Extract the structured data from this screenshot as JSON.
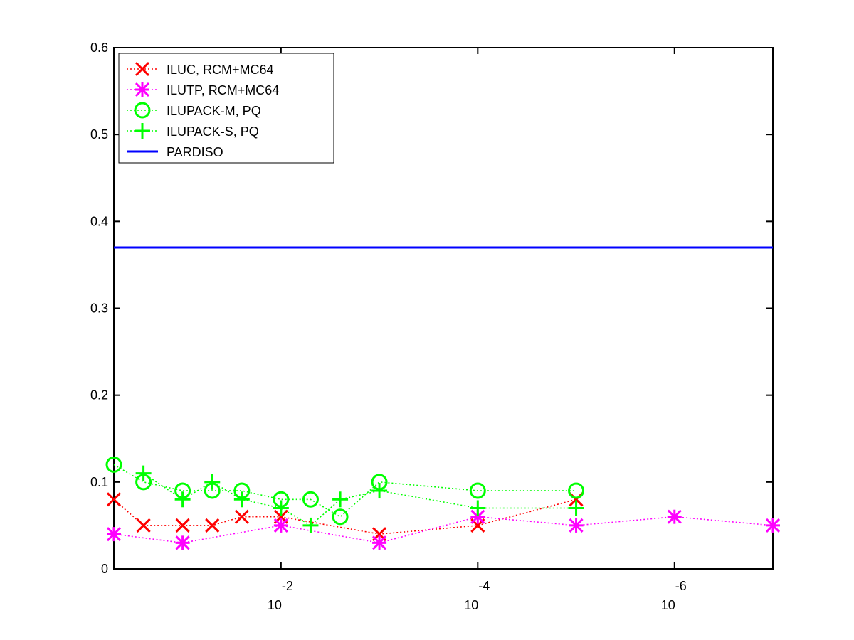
{
  "chart_data": {
    "type": "line",
    "x_scale": "log",
    "x_reversed": true,
    "xlim": [
      0.5,
      1e-07
    ],
    "ylim": [
      0,
      0.6
    ],
    "grid": false,
    "legend_position": "top-left",
    "yticks": [
      0,
      0.1,
      0.2,
      0.3,
      0.4,
      0.5,
      0.6
    ],
    "ytick_labels": [
      "0",
      "0.1",
      "0.2",
      "0.3",
      "0.4",
      "0.5",
      "0.6"
    ],
    "xticks": [
      0.01,
      0.0001,
      1e-06
    ],
    "xtick_labels": [
      {
        "base": "10",
        "exp": "-2"
      },
      {
        "base": "10",
        "exp": "-4"
      },
      {
        "base": "10",
        "exp": "-6"
      }
    ],
    "series": [
      {
        "name": "ILUC, RCM+MC64",
        "color": "#ff0000",
        "marker": "x",
        "line_style": "dotted",
        "x": [
          0.5,
          0.25,
          0.1,
          0.05,
          0.025,
          0.01,
          0.001,
          0.0001,
          1e-05
        ],
        "y": [
          0.08,
          0.05,
          0.05,
          0.05,
          0.06,
          0.06,
          0.04,
          0.05,
          0.08
        ]
      },
      {
        "name": "ILUTP, RCM+MC64",
        "color": "#ff00ff",
        "marker": "asterisk",
        "line_style": "dotted",
        "x": [
          0.5,
          0.1,
          0.01,
          0.001,
          0.0001,
          1e-05,
          1e-06,
          1e-07
        ],
        "y": [
          0.04,
          0.03,
          0.05,
          0.03,
          0.06,
          0.05,
          0.06,
          0.05
        ]
      },
      {
        "name": "ILUPACK-M, PQ",
        "color": "#00ff00",
        "marker": "circle",
        "line_style": "dotted",
        "x": [
          0.5,
          0.25,
          0.1,
          0.05,
          0.025,
          0.01,
          0.005,
          0.0025,
          0.001,
          0.0001,
          1e-05
        ],
        "y": [
          0.12,
          0.1,
          0.09,
          0.09,
          0.09,
          0.08,
          0.08,
          0.06,
          0.1,
          0.09,
          0.09
        ]
      },
      {
        "name": "ILUPACK-S, PQ",
        "color": "#00ff00",
        "marker": "plus",
        "line_style": "dotted",
        "x": [
          0.25,
          0.1,
          0.05,
          0.025,
          0.01,
          0.005,
          0.0025,
          0.001,
          0.0001,
          1e-05
        ],
        "y": [
          0.11,
          0.08,
          0.1,
          0.08,
          0.07,
          0.05,
          0.08,
          0.09,
          0.07,
          0.07
        ]
      },
      {
        "name": "PARDISO",
        "color": "#0000ff",
        "marker": "none",
        "line_style": "solid",
        "x": [
          0.5,
          1e-07
        ],
        "y": [
          0.37,
          0.37
        ]
      }
    ]
  }
}
